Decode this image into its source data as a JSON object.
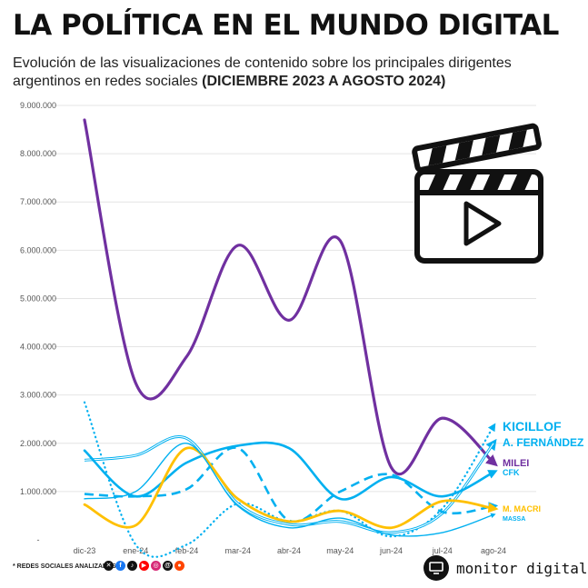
{
  "header": {
    "title": "LA POLÍTICA EN EL MUNDO DIGITAL",
    "subtitle_text": "Evolución de las visualizaciones de contenido sobre los principales dirigentes argentinos en redes sociales ",
    "subtitle_bold": "(DICIEMBRE 2023 A AGOSTO 2024)"
  },
  "footer": {
    "note": "* REDES SOCIALES ANALIZADAS",
    "social_icons": [
      "x-icon",
      "facebook-icon",
      "tiktok-icon",
      "youtube-icon",
      "instagram-icon",
      "threads-icon",
      "reddit-icon"
    ],
    "brand": "monitor digital"
  },
  "chart_data": {
    "type": "line",
    "categories": [
      "dic-23",
      "ene-24",
      "feb-24",
      "mar-24",
      "abr-24",
      "may-24",
      "jun-24",
      "jul-24",
      "ago-24"
    ],
    "y_tick_labels": [
      "-",
      "1.000.000",
      "2.000.000",
      "3.000.000",
      "4.000.000",
      "5.000.000",
      "6.000.000",
      "7.000.000",
      "8.000.000",
      "9.000.000"
    ],
    "ylim": [
      0,
      9000000
    ],
    "grid": true,
    "series": [
      {
        "name": "MILEI",
        "color": "#7030a0",
        "style": "solid",
        "width": 3.2,
        "values": [
          8700000,
          3250000,
          3800000,
          6100000,
          4550000,
          6200000,
          1500000,
          2520000,
          1600000
        ]
      },
      {
        "name": "KICILLOF",
        "color": "#00b0f0",
        "style": "dotted",
        "width": 2.2,
        "values": [
          2850000,
          -100000,
          -100000,
          750000,
          380000,
          600000,
          70000,
          650000,
          2350000
        ]
      },
      {
        "name": "A. FERNÁNDEZ",
        "color": "#00b0f0",
        "style": "double",
        "width": 3,
        "values": [
          1650000,
          1750000,
          2100000,
          750000,
          320000,
          380000,
          150000,
          550000,
          2000000
        ]
      },
      {
        "name": "CFK",
        "color": "#00b0f0",
        "style": "solid",
        "width": 2.6,
        "values": [
          1850000,
          900000,
          1600000,
          1950000,
          1900000,
          850000,
          1300000,
          900000,
          1400000
        ]
      },
      {
        "name": "",
        "color": "#00b0f0",
        "style": "dashed",
        "width": 2.6,
        "values": [
          950000,
          900000,
          1050000,
          1900000,
          400000,
          1000000,
          1350000,
          580000,
          700000
        ]
      },
      {
        "name": "M. MACRI",
        "color": "#ffc000",
        "style": "solid",
        "width": 2.8,
        "values": [
          730000,
          300000,
          1900000,
          850000,
          380000,
          600000,
          250000,
          800000,
          650000
        ]
      },
      {
        "name": "MASSA",
        "color": "#00b0f0",
        "style": "thin",
        "width": 1.4,
        "values": [
          850000,
          1000000,
          2000000,
          700000,
          250000,
          450000,
          100000,
          150000,
          520000
        ]
      }
    ],
    "end_labels": [
      {
        "text": "KICILLOF",
        "color": "#00b0f0",
        "size": 14
      },
      {
        "text": "A. FERNÁNDEZ",
        "color": "#00b0f0",
        "size": 12
      },
      {
        "text": "MILEI",
        "color": "#7030a0",
        "size": 11
      },
      {
        "text": "CFK",
        "color": "#00b0f0",
        "size": 9
      },
      {
        "text": "M. MACRI",
        "color": "#ffc000",
        "size": 9
      },
      {
        "text": "MASSA",
        "color": "#00b0f0",
        "size": 7
      }
    ],
    "decoration_icon": "clapperboard-play-icon"
  }
}
